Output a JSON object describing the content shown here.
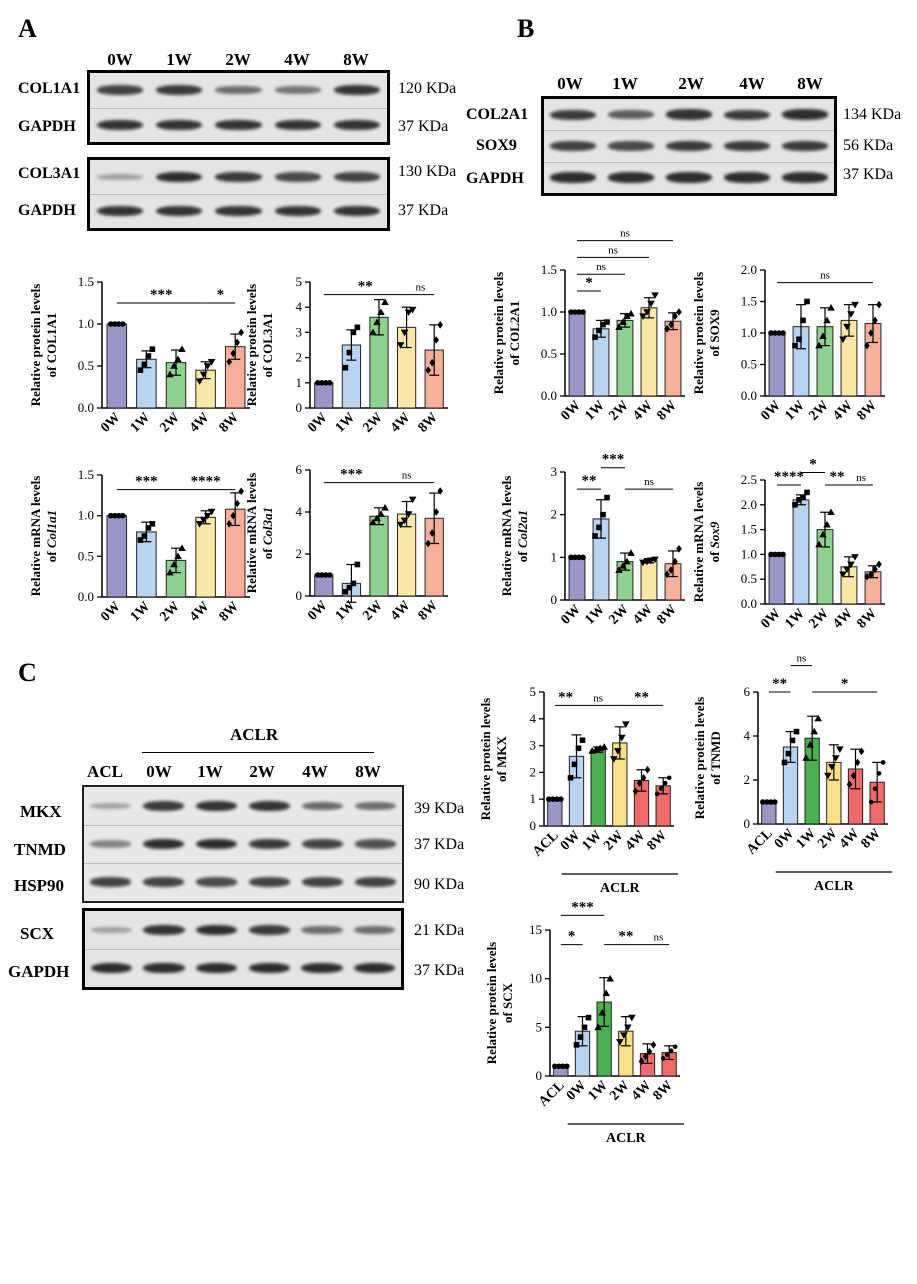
{
  "panels": {
    "a": "A",
    "b": "B",
    "c": "C"
  },
  "western_a": {
    "lanes": [
      "0W",
      "1W",
      "2W",
      "4W",
      "8W"
    ],
    "box1": [
      {
        "protein": "COL1A1",
        "kda": "120 KDa",
        "intensity": [
          0.8,
          0.85,
          0.5,
          0.45,
          0.9
        ]
      },
      {
        "protein": "GAPDH",
        "kda": "37 KDa",
        "intensity": [
          0.9,
          0.9,
          0.9,
          0.9,
          0.9
        ]
      }
    ],
    "box2": [
      {
        "protein": "COL3A1",
        "kda": "130 KDa",
        "intensity": [
          0.15,
          0.95,
          0.85,
          0.75,
          0.8
        ]
      },
      {
        "protein": "GAPDH",
        "kda": "37 KDa",
        "intensity": [
          0.9,
          0.9,
          0.9,
          0.9,
          0.9
        ]
      }
    ]
  },
  "western_b": {
    "lanes": [
      "0W",
      "1W",
      "2W",
      "4W",
      "8W"
    ],
    "rows": [
      {
        "protein": "COL2A1",
        "kda": "134 KDa",
        "intensity": [
          0.85,
          0.6,
          0.9,
          0.85,
          0.95
        ]
      },
      {
        "protein": "SOX9",
        "kda": "56 KDa",
        "intensity": [
          0.8,
          0.75,
          0.85,
          0.85,
          0.85
        ]
      },
      {
        "protein": "GAPDH",
        "kda": "37 KDa",
        "intensity": [
          0.95,
          0.95,
          0.95,
          0.95,
          0.95
        ]
      }
    ]
  },
  "western_c": {
    "group_label": "ACLR",
    "lanes": [
      "ACL",
      "0W",
      "1W",
      "2W",
      "4W",
      "8W"
    ],
    "box1": [
      {
        "protein": "MKX",
        "kda": "39 KDa",
        "intensity": [
          0.15,
          0.85,
          0.9,
          0.9,
          0.55,
          0.5
        ]
      },
      {
        "protein": "TNMD",
        "kda": "37 KDa",
        "intensity": [
          0.35,
          0.95,
          0.95,
          0.85,
          0.8,
          0.7
        ]
      },
      {
        "protein": "HSP90",
        "kda": "90 KDa",
        "intensity": [
          0.8,
          0.8,
          0.75,
          0.8,
          0.8,
          0.8
        ]
      }
    ],
    "box2": [
      {
        "protein": "SCX",
        "kda": "21 KDa",
        "intensity": [
          0.15,
          0.9,
          0.95,
          0.85,
          0.5,
          0.5
        ]
      },
      {
        "protein": "GAPDH",
        "kda": "37 KDa",
        "intensity": [
          0.95,
          0.95,
          0.95,
          0.95,
          0.95,
          0.95
        ]
      }
    ]
  },
  "colors": {
    "0W": "#9b96c8",
    "1W": "#b8d4f0",
    "2W": "#8fd18f",
    "4W": "#fbe8a6",
    "8W": "#f6b09a",
    "ACL": "#9b96c8",
    "C0W": "#b8d4f0",
    "C1W": "#4caf50",
    "C2W": "#fbe08a",
    "C4W": "#f06a6a",
    "C8W": "#f06a6a"
  },
  "chart_data": [
    {
      "id": "a1",
      "type": "bar",
      "ylabel": [
        "Relative protein levels",
        "of COL1A1"
      ],
      "categories": [
        "0W",
        "1W",
        "2W",
        "4W",
        "8W"
      ],
      "values": [
        1.0,
        0.58,
        0.54,
        0.45,
        0.73
      ],
      "errors": [
        0,
        0.1,
        0.15,
        0.1,
        0.15
      ],
      "ylim": [
        0,
        1.5
      ],
      "yticks": [
        "0.0",
        "0.5",
        "1.0",
        "1.5"
      ],
      "tickvals": [
        0,
        0.5,
        1,
        1.5
      ],
      "points": [
        [
          1,
          1,
          1,
          1
        ],
        [
          0.45,
          0.52,
          0.62,
          0.7
        ],
        [
          0.4,
          0.5,
          0.58,
          0.7
        ],
        [
          0.32,
          0.4,
          0.5,
          0.55
        ],
        [
          0.55,
          0.65,
          0.78,
          0.9
        ]
      ],
      "sig": [
        {
          "from": 0,
          "to": 3,
          "label": "***",
          "level": 1.25
        },
        {
          "from": 3,
          "to": 4,
          "label": "*",
          "level": 1.25
        }
      ]
    },
    {
      "id": "a2",
      "type": "bar",
      "ylabel": [
        "Relative protein levels",
        "of COL3A1"
      ],
      "categories": [
        "0W",
        "1W",
        "2W",
        "4W",
        "8W"
      ],
      "values": [
        1.0,
        2.5,
        3.6,
        3.2,
        2.3
      ],
      "errors": [
        0,
        0.6,
        0.7,
        0.8,
        1.0
      ],
      "ylim": [
        0,
        5
      ],
      "yticks": [
        "0",
        "1",
        "2",
        "3",
        "4",
        "5"
      ],
      "tickvals": [
        0,
        1,
        2,
        3,
        4,
        5
      ],
      "points": [
        [
          1,
          1,
          1,
          1
        ],
        [
          1.6,
          2.2,
          3.0,
          3.2
        ],
        [
          3.0,
          3.4,
          3.8,
          4.2
        ],
        [
          2.5,
          3.0,
          3.8,
          3.9
        ],
        [
          1.5,
          1.8,
          2.7,
          3.3
        ]
      ],
      "sig": [
        {
          "from": 0,
          "to": 3,
          "label": "**",
          "level": 4.5
        },
        {
          "from": 3,
          "to": 4,
          "label": "ns",
          "level": 4.5
        }
      ]
    },
    {
      "id": "a3",
      "type": "bar",
      "ylabel": [
        "Relative mRNA levels",
        "of Col1a1"
      ],
      "categories": [
        "0W",
        "1W",
        "2W",
        "4W",
        "8W"
      ],
      "values": [
        1.0,
        0.8,
        0.45,
        0.98,
        1.08
      ],
      "errors": [
        0,
        0.12,
        0.15,
        0.08,
        0.2
      ],
      "ylim": [
        0,
        1.5
      ],
      "yticks": [
        "0.0",
        "0.5",
        "1.0",
        "1.5"
      ],
      "tickvals": [
        0,
        0.5,
        1,
        1.5
      ],
      "points": [
        [
          1,
          1,
          1,
          1
        ],
        [
          0.7,
          0.75,
          0.85,
          0.9
        ],
        [
          0.3,
          0.4,
          0.5,
          0.6
        ],
        [
          0.9,
          0.95,
          1.0,
          1.05
        ],
        [
          0.9,
          1.0,
          1.15,
          1.3
        ]
      ],
      "sig": [
        {
          "from": 0,
          "to": 2,
          "label": "***",
          "level": 1.32
        },
        {
          "from": 2,
          "to": 4,
          "label": "****",
          "level": 1.32
        }
      ]
    },
    {
      "id": "a4",
      "type": "bar",
      "ylabel": [
        "Relative mRNA levels",
        "of Col3a1"
      ],
      "categories": [
        "0W",
        "1W",
        "2W",
        "4W",
        "8W"
      ],
      "values": [
        1.0,
        0.6,
        3.8,
        3.9,
        3.7
      ],
      "errors": [
        0,
        0.9,
        0.4,
        0.6,
        1.2
      ],
      "ylim": [
        0,
        6
      ],
      "yticks": [
        "0",
        "2",
        "4",
        "6"
      ],
      "tickvals": [
        0,
        2,
        4,
        6
      ],
      "points": [
        [
          1,
          1,
          1,
          1
        ],
        [
          0.2,
          0.4,
          0.6,
          1.5
        ],
        [
          3.5,
          3.7,
          3.9,
          4.2
        ],
        [
          3.4,
          3.6,
          3.9,
          4.6
        ],
        [
          2.5,
          3.0,
          4.0,
          5.0
        ]
      ],
      "sig": [
        {
          "from": 0,
          "to": 2,
          "label": "***",
          "level": 5.4
        },
        {
          "from": 2,
          "to": 4,
          "label": "ns",
          "level": 5.4
        }
      ]
    },
    {
      "id": "b1",
      "type": "bar",
      "ylabel": [
        "Relative protein levels",
        "of COL2A1"
      ],
      "categories": [
        "0W",
        "1W",
        "2W",
        "4W",
        "8W"
      ],
      "values": [
        1.0,
        0.8,
        0.9,
        1.05,
        0.89
      ],
      "errors": [
        0,
        0.1,
        0.08,
        0.12,
        0.1
      ],
      "ylim": [
        0,
        1.5
      ],
      "yticks": [
        "0.0",
        "0.5",
        "1.0",
        "1.5"
      ],
      "tickvals": [
        0,
        0.5,
        1,
        1.5
      ],
      "points": [
        [
          1,
          1,
          1,
          1
        ],
        [
          0.7,
          0.78,
          0.85,
          0.88
        ],
        [
          0.82,
          0.88,
          0.95,
          0.98
        ],
        [
          0.95,
          1.0,
          1.1,
          1.2
        ],
        [
          0.8,
          0.85,
          0.95,
          1.0
        ]
      ],
      "sig": [
        {
          "from": 0,
          "to": 1,
          "label": "*",
          "level": 1.25
        },
        {
          "from": 0,
          "to": 2,
          "label": "ns",
          "level": 1.45
        },
        {
          "from": 0,
          "to": 3,
          "label": "ns",
          "level": 1.65
        },
        {
          "from": 0,
          "to": 4,
          "label": "ns",
          "level": 1.85
        }
      ]
    },
    {
      "id": "b2",
      "type": "bar",
      "ylabel": [
        "Relative protein levels",
        "of SOX9"
      ],
      "categories": [
        "0W",
        "1W",
        "2W",
        "4W",
        "8W"
      ],
      "values": [
        1.0,
        1.1,
        1.1,
        1.2,
        1.15
      ],
      "errors": [
        0,
        0.35,
        0.3,
        0.25,
        0.3
      ],
      "ylim": [
        0,
        2.0
      ],
      "yticks": [
        "0.0",
        "0.5",
        "1.0",
        "1.5",
        "2.0"
      ],
      "tickvals": [
        0,
        0.5,
        1,
        1.5,
        2
      ],
      "points": [
        [
          1,
          1,
          1,
          1
        ],
        [
          0.8,
          0.9,
          1.2,
          1.5
        ],
        [
          0.8,
          0.95,
          1.2,
          1.4
        ],
        [
          0.9,
          1.1,
          1.3,
          1.45
        ],
        [
          0.8,
          1.0,
          1.2,
          1.45
        ]
      ],
      "sig": [
        {
          "from": 0,
          "to": 4,
          "label": "ns",
          "level": 1.8
        }
      ]
    },
    {
      "id": "b3",
      "type": "bar",
      "ylabel": [
        "Relative mRNA levels",
        "of Col2a1"
      ],
      "categories": [
        "0W",
        "1W",
        "2W",
        "4W",
        "8W"
      ],
      "values": [
        1.0,
        1.9,
        0.9,
        0.92,
        0.85
      ],
      "errors": [
        0,
        0.45,
        0.2,
        0.05,
        0.3
      ],
      "ylim": [
        0,
        3
      ],
      "yticks": [
        "0",
        "1",
        "2",
        "3"
      ],
      "tickvals": [
        0,
        1,
        2,
        3
      ],
      "points": [
        [
          1,
          1,
          1,
          1
        ],
        [
          1.5,
          1.7,
          2.0,
          2.4
        ],
        [
          0.7,
          0.8,
          0.9,
          1.1
        ],
        [
          0.88,
          0.9,
          0.93,
          0.95
        ],
        [
          0.6,
          0.7,
          0.9,
          1.2
        ]
      ],
      "sig": [
        {
          "from": 0,
          "to": 1,
          "label": "**",
          "level": 2.6
        },
        {
          "from": 1,
          "to": 2,
          "label": "***",
          "level": 3.1
        },
        {
          "from": 2,
          "to": 4,
          "label": "ns",
          "level": 2.6
        }
      ]
    },
    {
      "id": "b4",
      "type": "bar",
      "ylabel": [
        "Relative mRNA levels",
        "of Sox9"
      ],
      "categories": [
        "0W",
        "1W",
        "2W",
        "4W",
        "8W"
      ],
      "values": [
        1.0,
        2.1,
        1.5,
        0.75,
        0.65
      ],
      "errors": [
        0,
        0.1,
        0.35,
        0.2,
        0.12
      ],
      "ylim": [
        0,
        2.5
      ],
      "yticks": [
        "0.0",
        "0.5",
        "1.0",
        "1.5",
        "2.0",
        "2.5"
      ],
      "tickvals": [
        0,
        0.5,
        1,
        1.5,
        2,
        2.5
      ],
      "points": [
        [
          1,
          1,
          1,
          1
        ],
        [
          2.0,
          2.1,
          2.15,
          2.25
        ],
        [
          1.2,
          1.4,
          1.6,
          1.85
        ],
        [
          0.6,
          0.7,
          0.8,
          0.95
        ],
        [
          0.55,
          0.6,
          0.7,
          0.8
        ]
      ],
      "sig": [
        {
          "from": 0,
          "to": 1,
          "label": "****",
          "level": 2.4
        },
        {
          "from": 1,
          "to": 2,
          "label": "*",
          "level": 2.65
        },
        {
          "from": 2,
          "to": 3,
          "label": "**",
          "level": 2.4
        },
        {
          "from": 3,
          "to": 4,
          "label": "ns",
          "level": 2.4
        }
      ]
    },
    {
      "id": "c1",
      "type": "bar",
      "group": "ACLR",
      "ylabel": [
        "Relative protein levels",
        "of MKX"
      ],
      "categories": [
        "ACL",
        "0W",
        "1W",
        "2W",
        "4W",
        "8W"
      ],
      "values": [
        1.0,
        2.6,
        2.85,
        3.1,
        1.7,
        1.5
      ],
      "errors": [
        0,
        0.8,
        0.1,
        0.6,
        0.4,
        0.3
      ],
      "ylim": [
        0,
        5
      ],
      "yticks": [
        "0",
        "1",
        "2",
        "3",
        "4",
        "5"
      ],
      "tickvals": [
        0,
        1,
        2,
        3,
        4,
        5
      ],
      "points": [
        [
          1,
          1,
          1,
          1
        ],
        [
          1.8,
          2.3,
          2.9,
          3.2
        ],
        [
          2.8,
          2.85,
          2.9,
          2.95
        ],
        [
          2.5,
          2.8,
          3.3,
          3.8
        ],
        [
          1.3,
          1.6,
          1.8,
          2.1
        ],
        [
          1.2,
          1.4,
          1.6,
          1.8
        ]
      ],
      "sig": [
        {
          "from": 0,
          "to": 1,
          "label": "**",
          "level": 4.5
        },
        {
          "from": 1,
          "to": 3,
          "label": "ns",
          "level": 4.5
        },
        {
          "from": 3,
          "to": 5,
          "label": "**",
          "level": 4.5
        }
      ]
    },
    {
      "id": "c2",
      "type": "bar",
      "group": "ACLR",
      "ylabel": [
        "Relative protein levels",
        "of TNMD"
      ],
      "categories": [
        "ACL",
        "0W",
        "1W",
        "2W",
        "4W",
        "8W"
      ],
      "values": [
        1.0,
        3.5,
        3.9,
        2.8,
        2.5,
        1.9
      ],
      "errors": [
        0,
        0.7,
        1.0,
        0.8,
        0.9,
        0.9
      ],
      "ylim": [
        0,
        6
      ],
      "yticks": [
        "0",
        "2",
        "4",
        "6"
      ],
      "tickvals": [
        0,
        2,
        4,
        6
      ],
      "points": [
        [
          1,
          1,
          1,
          1
        ],
        [
          2.8,
          3.2,
          3.8,
          4.2
        ],
        [
          3.0,
          3.6,
          4.2,
          4.8
        ],
        [
          2.2,
          2.6,
          3.0,
          3.4
        ],
        [
          1.8,
          2.2,
          2.8,
          3.3
        ],
        [
          1.0,
          1.6,
          2.3,
          2.8
        ]
      ],
      "sig": [
        {
          "from": 0,
          "to": 1,
          "label": "**",
          "level": 6.0
        },
        {
          "from": 1,
          "to": 2,
          "label": "ns",
          "level": 7.2
        },
        {
          "from": 2,
          "to": 5,
          "label": "*",
          "level": 6.0
        }
      ]
    },
    {
      "id": "c3",
      "type": "bar",
      "group": "ACLR",
      "ylabel": [
        "Relative protein levels",
        "of SCX"
      ],
      "categories": [
        "ACL",
        "0W",
        "1W",
        "2W",
        "4W",
        "8W"
      ],
      "values": [
        1.0,
        4.6,
        7.6,
        4.6,
        2.3,
        2.4
      ],
      "errors": [
        0,
        1.5,
        2.5,
        1.5,
        1.0,
        0.7
      ],
      "ylim": [
        0,
        15
      ],
      "yticks": [
        "0",
        "5",
        "10",
        "15"
      ],
      "tickvals": [
        0,
        5,
        10,
        15
      ],
      "points": [
        [
          1,
          1,
          1,
          1
        ],
        [
          3.2,
          4.0,
          5.0,
          6.0
        ],
        [
          5.0,
          6.5,
          8.5,
          10.0
        ],
        [
          3.5,
          4.2,
          5.0,
          6.0
        ],
        [
          1.5,
          2.0,
          2.5,
          3.2
        ],
        [
          1.8,
          2.2,
          2.6,
          3.0
        ]
      ],
      "sig": [
        {
          "from": 0,
          "to": 1,
          "label": "*",
          "level": 13.5
        },
        {
          "from": 0,
          "to": 2,
          "label": "***",
          "level": 16.5
        },
        {
          "from": 2,
          "to": 4,
          "label": "**",
          "level": 13.5
        },
        {
          "from": 4,
          "to": 5,
          "label": "ns",
          "level": 13.5
        }
      ]
    }
  ]
}
